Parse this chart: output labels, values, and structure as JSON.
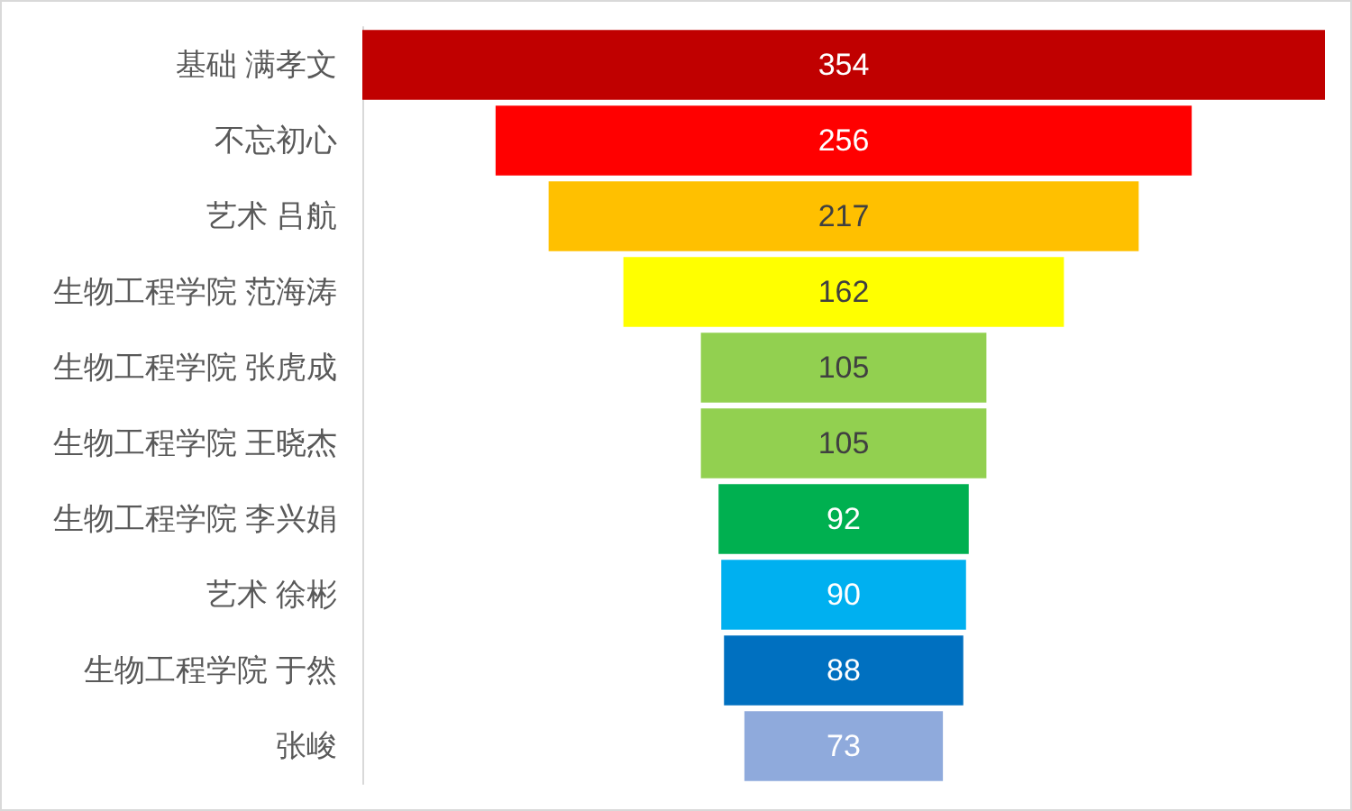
{
  "chart_data": {
    "type": "other",
    "categories": [
      "基础 满孝文",
      "不忘初心",
      "艺术 吕航",
      "生物工程学院 范海涛",
      "生物工程学院 张虎成",
      "生物工程学院 王晓杰",
      "生物工程学院 李兴娟",
      "艺术 徐彬",
      "生物工程学院 于然",
      "张峻"
    ],
    "values": [
      354,
      256,
      217,
      162,
      105,
      105,
      92,
      90,
      88,
      73
    ],
    "colors": [
      "#c00000",
      "#ff0000",
      "#ffc000",
      "#ffff00",
      "#92d050",
      "#92d050",
      "#00b050",
      "#00b0f0",
      "#0070c0",
      "#8faadc"
    ],
    "data_labels": true
  }
}
